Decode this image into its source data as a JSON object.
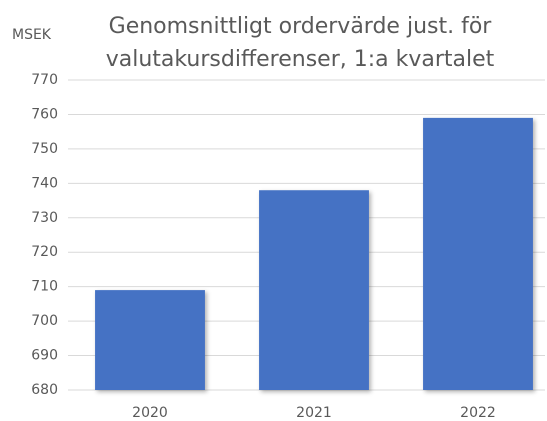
{
  "chart_data": {
    "type": "bar",
    "title": [
      "Genomsnittligt ordervärde just. för",
      "valutakursdifferenser, 1:a kvartalet"
    ],
    "y_label": "MSEK",
    "categories": [
      "2020",
      "2021",
      "2022"
    ],
    "values": [
      709,
      738,
      759
    ],
    "color": "#4472c4",
    "ylim": [
      680,
      770
    ],
    "yticks": [
      680,
      690,
      700,
      710,
      720,
      730,
      740,
      750,
      760,
      770
    ],
    "grid": true
  }
}
